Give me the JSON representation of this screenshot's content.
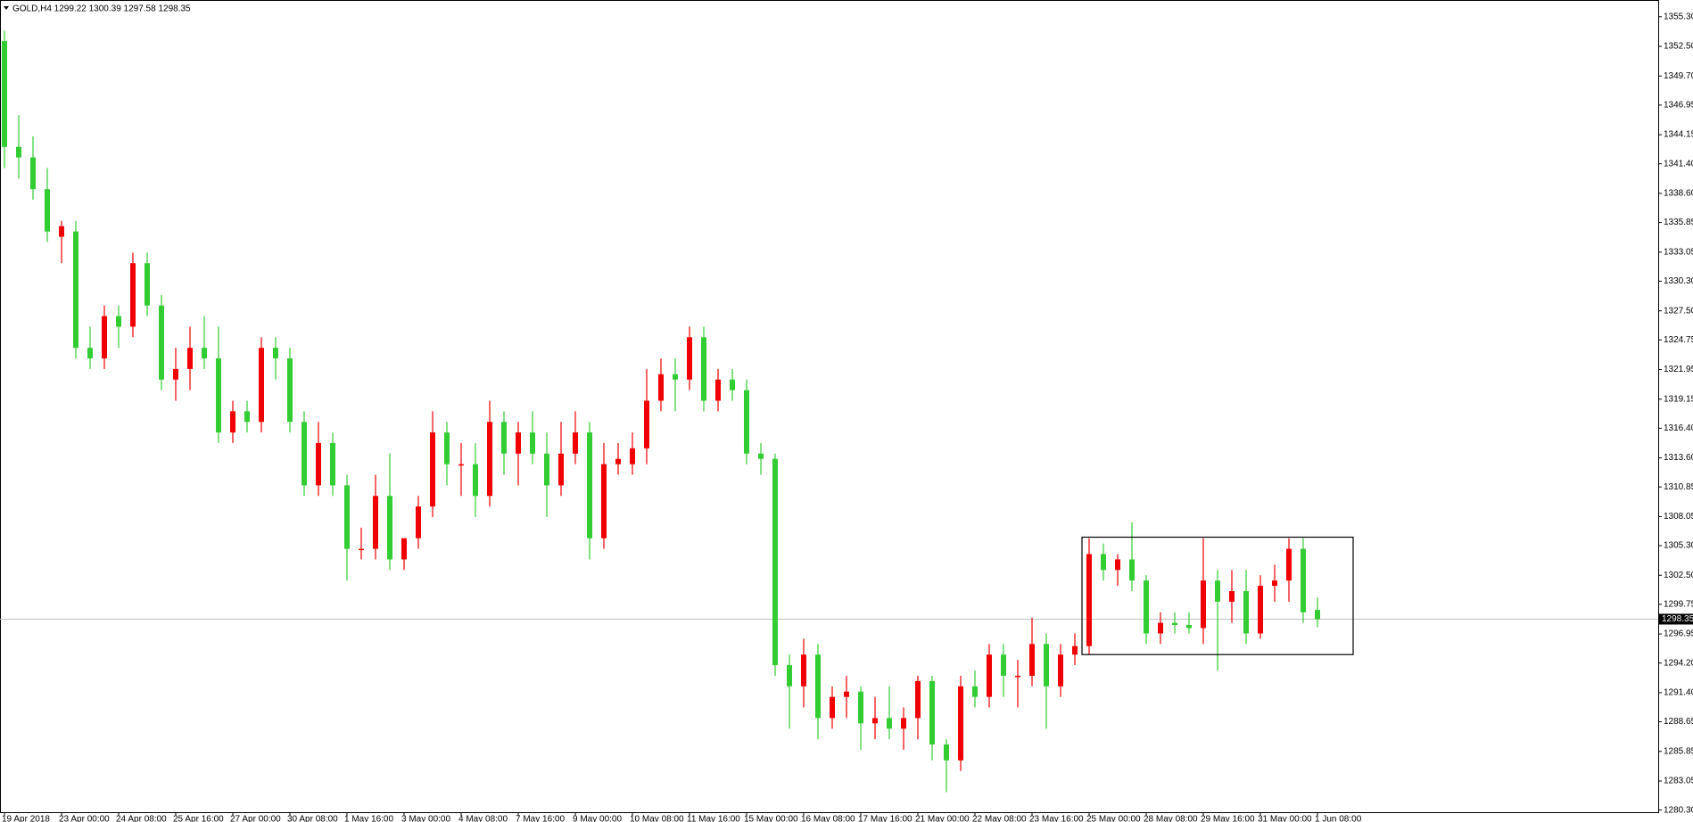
{
  "chart_data": {
    "type": "candlestick",
    "title": "GOLD,H4  1299.22 1300.39 1297.58 1298.35",
    "categories": [
      "19 Apr 2018",
      null,
      null,
      null,
      "23 Apr 00:00",
      null,
      null,
      null,
      "24 Apr 08:00",
      null,
      null,
      null,
      "25 Apr 16:00",
      null,
      null,
      null,
      "27 Apr 00:00",
      null,
      null,
      null,
      "30 Apr 08:00",
      null,
      null,
      null,
      "1 May 16:00",
      null,
      null,
      null,
      "3 May 00:00",
      null,
      null,
      null,
      "4 May 08:00",
      null,
      null,
      null,
      "7 May 16:00",
      null,
      null,
      null,
      "9 May 00:00",
      null,
      null,
      null,
      "10 May 08:00",
      null,
      null,
      null,
      "11 May 16:00",
      null,
      null,
      null,
      "15 May 00:00",
      null,
      null,
      null,
      "16 May 08:00",
      null,
      null,
      null,
      "17 May 16:00",
      null,
      null,
      null,
      "21 May 00:00",
      null,
      null,
      null,
      "22 May 08:00",
      null,
      null,
      null,
      "23 May 16:00",
      null,
      null,
      null,
      "25 May 00:00",
      null,
      null,
      null,
      "28 May 08:00",
      null,
      null,
      null,
      "29 May 16:00",
      null,
      null,
      null,
      "31 May 00:00",
      null,
      null,
      null,
      "1 Jun 08:00"
    ],
    "ohlc": [
      [
        1353,
        1354,
        1341,
        1343
      ],
      [
        1343,
        1346,
        1340,
        1342
      ],
      [
        1342,
        1344,
        1338,
        1339
      ],
      [
        1339,
        1341,
        1334,
        1335
      ],
      [
        1334.5,
        1336,
        1332,
        1335.5
      ],
      [
        1335,
        1336,
        1323,
        1324
      ],
      [
        1324,
        1326,
        1322,
        1323
      ],
      [
        1323,
        1328,
        1322,
        1327
      ],
      [
        1327,
        1328,
        1324,
        1326
      ],
      [
        1326,
        1333,
        1325,
        1332
      ],
      [
        1332,
        1333,
        1327,
        1328
      ],
      [
        1328,
        1329,
        1320,
        1321
      ],
      [
        1321,
        1324,
        1319,
        1322
      ],
      [
        1322,
        1326,
        1320,
        1324
      ],
      [
        1324,
        1327,
        1322,
        1323
      ],
      [
        1323,
        1326,
        1315,
        1316
      ],
      [
        1316,
        1319,
        1315,
        1318
      ],
      [
        1318,
        1319,
        1316,
        1317
      ],
      [
        1317,
        1325,
        1316,
        1324
      ],
      [
        1324,
        1325,
        1321,
        1323
      ],
      [
        1323,
        1324,
        1316,
        1317
      ],
      [
        1317,
        1318,
        1310,
        1311
      ],
      [
        1311,
        1317,
        1310,
        1315
      ],
      [
        1315,
        1316,
        1310,
        1311
      ],
      [
        1311,
        1312,
        1302,
        1305
      ],
      [
        1305,
        1307,
        1304,
        1305
      ],
      [
        1305,
        1312,
        1304,
        1310
      ],
      [
        1310,
        1314,
        1303,
        1304
      ],
      [
        1304,
        1306,
        1303,
        1306
      ],
      [
        1306,
        1310,
        1305,
        1309
      ],
      [
        1309,
        1318,
        1308,
        1316
      ],
      [
        1316,
        1317,
        1311,
        1313
      ],
      [
        1313,
        1315,
        1310,
        1313
      ],
      [
        1313,
        1315,
        1308,
        1310
      ],
      [
        1310,
        1319,
        1309,
        1317
      ],
      [
        1317,
        1318,
        1312,
        1314
      ],
      [
        1314,
        1317,
        1311,
        1316
      ],
      [
        1316,
        1318,
        1313,
        1314
      ],
      [
        1314,
        1316,
        1308,
        1311
      ],
      [
        1311,
        1317,
        1310,
        1314
      ],
      [
        1314,
        1318,
        1313,
        1316
      ],
      [
        1316,
        1317,
        1304,
        1306
      ],
      [
        1306,
        1315,
        1305,
        1313
      ],
      [
        1313,
        1315,
        1312,
        1313.5
      ],
      [
        1313,
        1316,
        1312,
        1314.5
      ],
      [
        1314.5,
        1322,
        1313,
        1319
      ],
      [
        1319,
        1323,
        1318,
        1321.5
      ],
      [
        1321.5,
        1323,
        1318,
        1321
      ],
      [
        1321,
        1326,
        1320,
        1325
      ],
      [
        1325,
        1326,
        1318,
        1319
      ],
      [
        1319,
        1322,
        1318,
        1321
      ],
      [
        1321,
        1322,
        1319,
        1320
      ],
      [
        1320,
        1321,
        1313,
        1314
      ],
      [
        1314,
        1315,
        1312,
        1313.5
      ],
      [
        1313.5,
        1314,
        1293,
        1294
      ],
      [
        1294,
        1295,
        1288,
        1292
      ],
      [
        1292,
        1296.5,
        1290,
        1295
      ],
      [
        1295,
        1296,
        1287,
        1289
      ],
      [
        1289,
        1292,
        1288,
        1291
      ],
      [
        1291,
        1293,
        1289,
        1291.5
      ],
      [
        1291.5,
        1292,
        1286,
        1288.5
      ],
      [
        1288.5,
        1291,
        1287,
        1289
      ],
      [
        1289,
        1292,
        1287,
        1288
      ],
      [
        1288,
        1290,
        1286,
        1289
      ],
      [
        1289,
        1293,
        1287,
        1292.5
      ],
      [
        1292.5,
        1293,
        1285,
        1286.5
      ],
      [
        1286.5,
        1287,
        1282,
        1285
      ],
      [
        1285,
        1293,
        1284,
        1292
      ],
      [
        1292,
        1293.5,
        1290,
        1291
      ],
      [
        1291,
        1296,
        1290,
        1295
      ],
      [
        1295,
        1296,
        1291,
        1293
      ],
      [
        1293,
        1294.5,
        1290,
        1293
      ],
      [
        1293,
        1298.5,
        1292,
        1296
      ],
      [
        1296,
        1297,
        1288,
        1292
      ],
      [
        1292,
        1296,
        1291,
        1295
      ],
      [
        1295,
        1297,
        1294,
        1295.8
      ],
      [
        1295.8,
        1306,
        1295,
        1304.5
      ],
      [
        1304.5,
        1305.5,
        1302,
        1303
      ],
      [
        1303,
        1304.5,
        1301.5,
        1304
      ],
      [
        1304,
        1307.5,
        1301,
        1302
      ],
      [
        1302,
        1302.5,
        1296,
        1297
      ],
      [
        1297,
        1299,
        1296,
        1298
      ],
      [
        1298,
        1299,
        1297,
        1297.8
      ],
      [
        1297.8,
        1299,
        1297,
        1297.5
      ],
      [
        1297.5,
        1306,
        1296,
        1302
      ],
      [
        1302,
        1303,
        1293.5,
        1300
      ],
      [
        1300,
        1303,
        1298,
        1301
      ],
      [
        1301,
        1303,
        1296,
        1297
      ],
      [
        1297,
        1302.5,
        1296.5,
        1301.5
      ],
      [
        1301.5,
        1303.5,
        1300,
        1302
      ],
      [
        1302,
        1306,
        1300,
        1305
      ],
      [
        1305,
        1306,
        1298,
        1299
      ],
      [
        1299.22,
        1300.39,
        1297.58,
        1298.35
      ]
    ],
    "up_color": "#f00000",
    "down_color": "#32cd32",
    "ylim": [
      1280.1,
      1356.8
    ],
    "yticks": [
      {
        "value": 1355.3,
        "label": "1355.30"
      },
      {
        "value": 1352.5,
        "label": "1352.50"
      },
      {
        "value": 1349.7,
        "label": "1349.70"
      },
      1346.95,
      1344.15,
      {
        "value": 1341.4,
        "label": "1341.40"
      },
      {
        "value": 1338.6,
        "label": "1338.60"
      },
      1335.85,
      1333.05,
      {
        "value": 1330.3,
        "label": "1330.30"
      },
      {
        "value": 1327.5,
        "label": "1327.50"
      },
      1324.75,
      1321.95,
      1319.15,
      {
        "value": 1316.4,
        "label": "1316.40"
      },
      {
        "value": 1313.6,
        "label": "1313.60"
      },
      1310.85,
      1308.05,
      {
        "value": 1305.3,
        "label": "1305.30"
      },
      {
        "value": 1302.5,
        "label": "1302.50"
      },
      1299.75,
      1296.95,
      {
        "value": 1294.2,
        "label": "1294.20"
      },
      {
        "value": 1291.4,
        "label": "1291.40"
      },
      1288.65,
      1285.85,
      1283.05,
      {
        "value": 1280.3,
        "label": "1280.30"
      }
    ],
    "last_price": 1298.35,
    "box": {
      "xlim": [
        75.5,
        94.5
      ],
      "ylim": [
        1295.0,
        1306.1
      ]
    }
  }
}
